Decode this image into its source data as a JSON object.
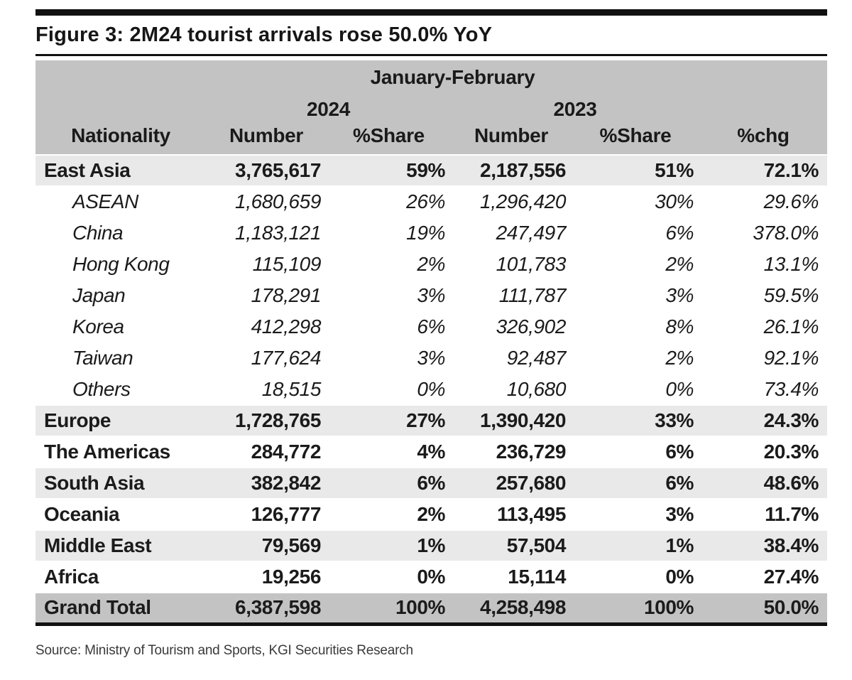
{
  "title": "Figure 3: 2M24 tourist arrivals rose 50.0% YoY",
  "source": "Source: Ministry of Tourism and Sports, KGI Securities Research",
  "colors": {
    "header_bg": "#c2c3c2",
    "band_bg": "#e9e9e9",
    "total_bg": "#c2c3c2",
    "rule": "#111111"
  },
  "table": {
    "header": {
      "nationality": "Nationality",
      "period": "January-February",
      "year_2024": "2024",
      "year_2023": "2023",
      "number_2024": "Number",
      "share_2024": "%Share",
      "number_2023": "Number",
      "share_2023": "%Share",
      "chg": "%chg"
    },
    "rows": [
      {
        "name": "East Asia",
        "number_2024": "3,765,617",
        "share_2024": "59%",
        "number_2023": "2,187,556",
        "share_2023": "51%",
        "pct_chg": "72.1%",
        "type": "group",
        "shaded": true
      },
      {
        "name": "ASEAN",
        "number_2024": "1,680,659",
        "share_2024": "26%",
        "number_2023": "1,296,420",
        "share_2023": "30%",
        "pct_chg": "29.6%",
        "type": "detail",
        "shaded": false
      },
      {
        "name": "China",
        "number_2024": "1,183,121",
        "share_2024": "19%",
        "number_2023": "247,497",
        "share_2023": "6%",
        "pct_chg": "378.0%",
        "type": "detail",
        "shaded": false
      },
      {
        "name": "Hong Kong",
        "number_2024": "115,109",
        "share_2024": "2%",
        "number_2023": "101,783",
        "share_2023": "2%",
        "pct_chg": "13.1%",
        "type": "detail",
        "shaded": false
      },
      {
        "name": "Japan",
        "number_2024": "178,291",
        "share_2024": "3%",
        "number_2023": "111,787",
        "share_2023": "3%",
        "pct_chg": "59.5%",
        "type": "detail",
        "shaded": false
      },
      {
        "name": "Korea",
        "number_2024": "412,298",
        "share_2024": "6%",
        "number_2023": "326,902",
        "share_2023": "8%",
        "pct_chg": "26.1%",
        "type": "detail",
        "shaded": false
      },
      {
        "name": "Taiwan",
        "number_2024": "177,624",
        "share_2024": "3%",
        "number_2023": "92,487",
        "share_2023": "2%",
        "pct_chg": "92.1%",
        "type": "detail",
        "shaded": false
      },
      {
        "name": "Others",
        "number_2024": "18,515",
        "share_2024": "0%",
        "number_2023": "10,680",
        "share_2023": "0%",
        "pct_chg": "73.4%",
        "type": "detail",
        "shaded": false
      },
      {
        "name": "Europe",
        "number_2024": "1,728,765",
        "share_2024": "27%",
        "number_2023": "1,390,420",
        "share_2023": "33%",
        "pct_chg": "24.3%",
        "type": "group",
        "shaded": true
      },
      {
        "name": "The Americas",
        "number_2024": "284,772",
        "share_2024": "4%",
        "number_2023": "236,729",
        "share_2023": "6%",
        "pct_chg": "20.3%",
        "type": "group",
        "shaded": false
      },
      {
        "name": "South Asia",
        "number_2024": "382,842",
        "share_2024": "6%",
        "number_2023": "257,680",
        "share_2023": "6%",
        "pct_chg": "48.6%",
        "type": "group",
        "shaded": true
      },
      {
        "name": "Oceania",
        "number_2024": "126,777",
        "share_2024": "2%",
        "number_2023": "113,495",
        "share_2023": "3%",
        "pct_chg": "11.7%",
        "type": "group",
        "shaded": false
      },
      {
        "name": "Middle East",
        "number_2024": "79,569",
        "share_2024": "1%",
        "number_2023": "57,504",
        "share_2023": "1%",
        "pct_chg": "38.4%",
        "type": "group",
        "shaded": true
      },
      {
        "name": "Africa",
        "number_2024": "19,256",
        "share_2024": "0%",
        "number_2023": "15,114",
        "share_2023": "0%",
        "pct_chg": "27.4%",
        "type": "group",
        "shaded": false
      },
      {
        "name": "Grand Total",
        "number_2024": "6,387,598",
        "share_2024": "100%",
        "number_2023": "4,258,498",
        "share_2023": "100%",
        "pct_chg": "50.0%",
        "type": "total",
        "shaded": false
      }
    ]
  }
}
